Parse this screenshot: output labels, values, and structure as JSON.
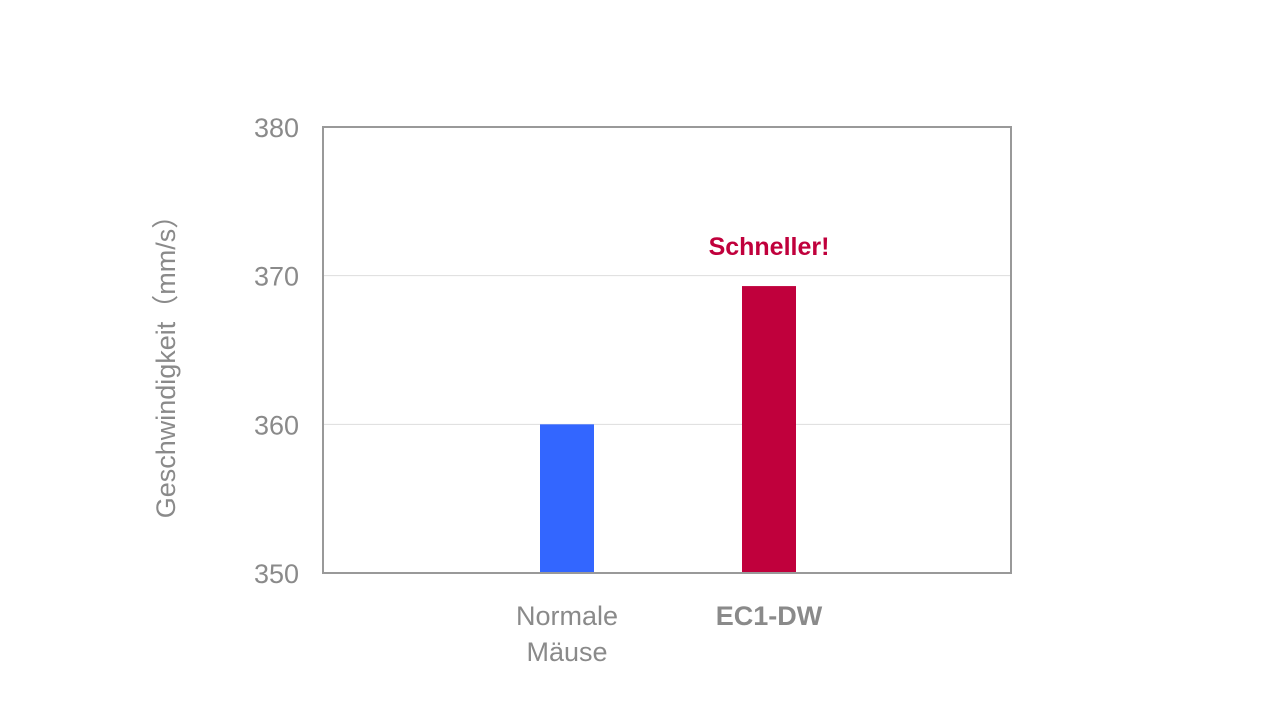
{
  "chart_data": {
    "type": "bar",
    "categories": [
      "Normale Mäuse",
      "EC1-DW"
    ],
    "category_label_lines": [
      [
        "Normale",
        "Mäuse"
      ],
      [
        "EC1-DW"
      ]
    ],
    "category_bold": [
      false,
      true
    ],
    "values": [
      360,
      369.3
    ],
    "bar_colors": [
      "#3366ff",
      "#c0003c"
    ],
    "ylabel": "Geschwindigkeit（mm/s）",
    "ylim": [
      350,
      380
    ],
    "yticks": [
      350,
      360,
      370,
      380
    ],
    "grid": true,
    "annotation": {
      "text": "Schneller!",
      "category": "EC1-DW",
      "color": "#c0003c"
    },
    "frame_color": "#999999",
    "grid_color": "#dddddd",
    "text_color": "#8a8a8a"
  }
}
